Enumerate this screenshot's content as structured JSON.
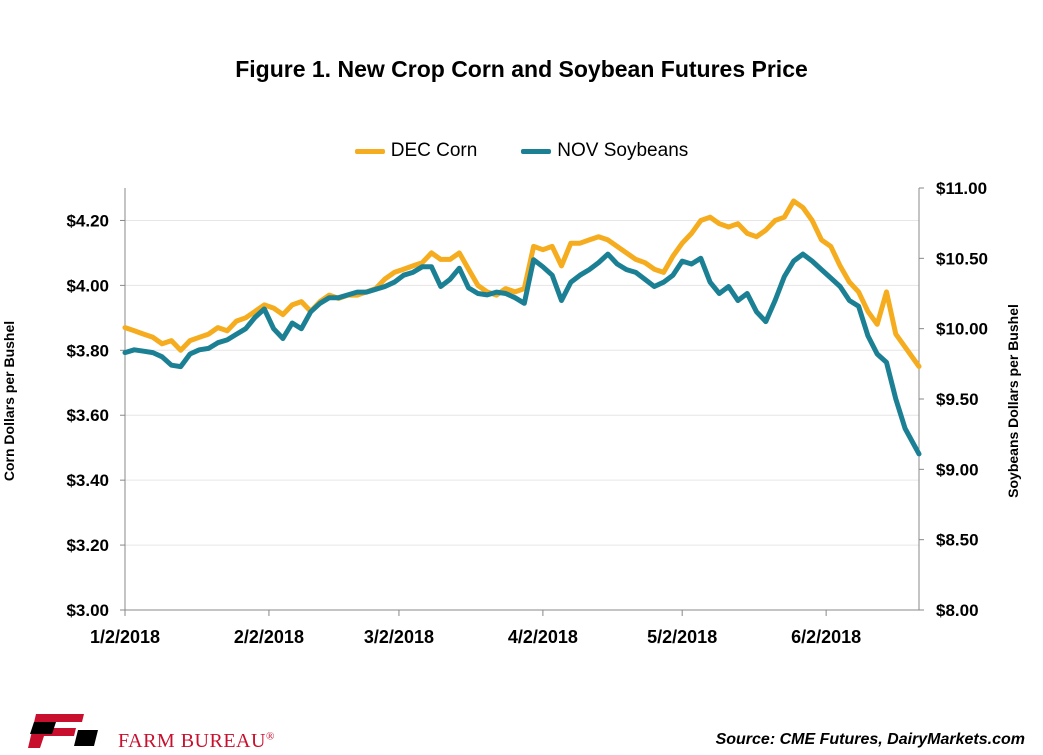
{
  "title": "Figure 1. New Crop Corn and Soybean Futures Price",
  "legend": {
    "corn": "DEC Corn",
    "soy": "NOV Soybeans"
  },
  "footer": {
    "source": "Source: CME Futures, DairyMarkets.com",
    "brand": "FARM BUREAU",
    "brand_mark": "®"
  },
  "colors": {
    "corn": "#f5ac1e",
    "soy": "#1c8094"
  },
  "chart_data": {
    "type": "line",
    "title": "Figure 1. New Crop Corn and Soybean Futures Price",
    "xlabel": "",
    "ylabel": "Corn Dollars per Bushel",
    "y2label": "Soybeans Dollars per Bushel",
    "xlim": [
      "2018-01-02",
      "2018-06-22"
    ],
    "ylim": [
      3.0,
      4.3
    ],
    "y2lim": [
      8.0,
      11.0
    ],
    "yticks": [
      "$3.00",
      "$3.20",
      "$3.40",
      "$3.60",
      "$3.80",
      "$4.00",
      "$4.20"
    ],
    "y2ticks": [
      "$8.00",
      "$8.50",
      "$9.00",
      "$9.50",
      "$10.00",
      "$10.50",
      "$11.00"
    ],
    "xticks": [
      "1/2/2018",
      "2/2/2018",
      "3/2/2018",
      "4/2/2018",
      "5/2/2018",
      "6/2/2018"
    ],
    "grid": "horizontal",
    "legend_position": "top",
    "series": [
      {
        "name": "DEC Corn",
        "axis": "left",
        "points": [
          [
            "2018-01-02",
            3.87
          ],
          [
            "2018-01-04",
            3.86
          ],
          [
            "2018-01-06",
            3.85
          ],
          [
            "2018-01-08",
            3.84
          ],
          [
            "2018-01-10",
            3.82
          ],
          [
            "2018-01-12",
            3.83
          ],
          [
            "2018-01-14",
            3.8
          ],
          [
            "2018-01-16",
            3.83
          ],
          [
            "2018-01-18",
            3.84
          ],
          [
            "2018-01-20",
            3.85
          ],
          [
            "2018-01-22",
            3.87
          ],
          [
            "2018-01-24",
            3.86
          ],
          [
            "2018-01-26",
            3.89
          ],
          [
            "2018-01-28",
            3.9
          ],
          [
            "2018-01-30",
            3.92
          ],
          [
            "2018-02-01",
            3.94
          ],
          [
            "2018-02-03",
            3.93
          ],
          [
            "2018-02-05",
            3.91
          ],
          [
            "2018-02-07",
            3.94
          ],
          [
            "2018-02-09",
            3.95
          ],
          [
            "2018-02-11",
            3.92
          ],
          [
            "2018-02-13",
            3.95
          ],
          [
            "2018-02-15",
            3.97
          ],
          [
            "2018-02-17",
            3.96
          ],
          [
            "2018-02-19",
            3.97
          ],
          [
            "2018-02-21",
            3.97
          ],
          [
            "2018-02-23",
            3.98
          ],
          [
            "2018-02-25",
            3.99
          ],
          [
            "2018-02-27",
            4.02
          ],
          [
            "2018-03-01",
            4.04
          ],
          [
            "2018-03-03",
            4.05
          ],
          [
            "2018-03-05",
            4.06
          ],
          [
            "2018-03-07",
            4.07
          ],
          [
            "2018-03-09",
            4.1
          ],
          [
            "2018-03-11",
            4.08
          ],
          [
            "2018-03-13",
            4.08
          ],
          [
            "2018-03-15",
            4.1
          ],
          [
            "2018-03-17",
            4.05
          ],
          [
            "2018-03-19",
            4.0
          ],
          [
            "2018-03-21",
            3.98
          ],
          [
            "2018-03-23",
            3.97
          ],
          [
            "2018-03-25",
            3.99
          ],
          [
            "2018-03-27",
            3.98
          ],
          [
            "2018-03-29",
            3.99
          ],
          [
            "2018-03-31",
            4.12
          ],
          [
            "2018-04-02",
            4.11
          ],
          [
            "2018-04-04",
            4.12
          ],
          [
            "2018-04-06",
            4.06
          ],
          [
            "2018-04-08",
            4.13
          ],
          [
            "2018-04-10",
            4.13
          ],
          [
            "2018-04-12",
            4.14
          ],
          [
            "2018-04-14",
            4.15
          ],
          [
            "2018-04-16",
            4.14
          ],
          [
            "2018-04-18",
            4.12
          ],
          [
            "2018-04-20",
            4.1
          ],
          [
            "2018-04-22",
            4.08
          ],
          [
            "2018-04-24",
            4.07
          ],
          [
            "2018-04-26",
            4.05
          ],
          [
            "2018-04-28",
            4.04
          ],
          [
            "2018-04-30",
            4.09
          ],
          [
            "2018-05-02",
            4.13
          ],
          [
            "2018-05-04",
            4.16
          ],
          [
            "2018-05-06",
            4.2
          ],
          [
            "2018-05-08",
            4.21
          ],
          [
            "2018-05-10",
            4.19
          ],
          [
            "2018-05-12",
            4.18
          ],
          [
            "2018-05-14",
            4.19
          ],
          [
            "2018-05-16",
            4.16
          ],
          [
            "2018-05-18",
            4.15
          ],
          [
            "2018-05-20",
            4.17
          ],
          [
            "2018-05-22",
            4.2
          ],
          [
            "2018-05-24",
            4.21
          ],
          [
            "2018-05-26",
            4.26
          ],
          [
            "2018-05-28",
            4.24
          ],
          [
            "2018-05-30",
            4.2
          ],
          [
            "2018-06-01",
            4.14
          ],
          [
            "2018-06-03",
            4.12
          ],
          [
            "2018-06-05",
            4.06
          ],
          [
            "2018-06-07",
            4.01
          ],
          [
            "2018-06-09",
            3.98
          ],
          [
            "2018-06-11",
            3.92
          ],
          [
            "2018-06-13",
            3.88
          ],
          [
            "2018-06-15",
            3.98
          ],
          [
            "2018-06-17",
            3.85
          ],
          [
            "2018-06-19",
            3.81
          ],
          [
            "2018-06-22",
            3.75
          ]
        ]
      },
      {
        "name": "NOV Soybeans",
        "axis": "right",
        "points": [
          [
            "2018-01-02",
            9.83
          ],
          [
            "2018-01-04",
            9.85
          ],
          [
            "2018-01-06",
            9.84
          ],
          [
            "2018-01-08",
            9.83
          ],
          [
            "2018-01-10",
            9.8
          ],
          [
            "2018-01-12",
            9.74
          ],
          [
            "2018-01-14",
            9.73
          ],
          [
            "2018-01-16",
            9.82
          ],
          [
            "2018-01-18",
            9.85
          ],
          [
            "2018-01-20",
            9.86
          ],
          [
            "2018-01-22",
            9.9
          ],
          [
            "2018-01-24",
            9.92
          ],
          [
            "2018-01-26",
            9.96
          ],
          [
            "2018-01-28",
            10.0
          ],
          [
            "2018-01-30",
            10.08
          ],
          [
            "2018-02-01",
            10.14
          ],
          [
            "2018-02-03",
            10.0
          ],
          [
            "2018-02-05",
            9.93
          ],
          [
            "2018-02-07",
            10.04
          ],
          [
            "2018-02-09",
            10.0
          ],
          [
            "2018-02-11",
            10.12
          ],
          [
            "2018-02-13",
            10.18
          ],
          [
            "2018-02-15",
            10.22
          ],
          [
            "2018-02-17",
            10.22
          ],
          [
            "2018-02-19",
            10.24
          ],
          [
            "2018-02-21",
            10.26
          ],
          [
            "2018-02-23",
            10.26
          ],
          [
            "2018-02-25",
            10.28
          ],
          [
            "2018-02-27",
            10.3
          ],
          [
            "2018-03-01",
            10.33
          ],
          [
            "2018-03-03",
            10.38
          ],
          [
            "2018-03-05",
            10.4
          ],
          [
            "2018-03-07",
            10.44
          ],
          [
            "2018-03-09",
            10.44
          ],
          [
            "2018-03-11",
            10.3
          ],
          [
            "2018-03-13",
            10.35
          ],
          [
            "2018-03-15",
            10.43
          ],
          [
            "2018-03-17",
            10.29
          ],
          [
            "2018-03-19",
            10.25
          ],
          [
            "2018-03-21",
            10.24
          ],
          [
            "2018-03-23",
            10.26
          ],
          [
            "2018-03-25",
            10.25
          ],
          [
            "2018-03-27",
            10.22
          ],
          [
            "2018-03-29",
            10.18
          ],
          [
            "2018-03-31",
            10.49
          ],
          [
            "2018-04-02",
            10.44
          ],
          [
            "2018-04-04",
            10.38
          ],
          [
            "2018-04-06",
            10.2
          ],
          [
            "2018-04-08",
            10.33
          ],
          [
            "2018-04-10",
            10.38
          ],
          [
            "2018-04-12",
            10.42
          ],
          [
            "2018-04-14",
            10.47
          ],
          [
            "2018-04-16",
            10.53
          ],
          [
            "2018-04-18",
            10.46
          ],
          [
            "2018-04-20",
            10.42
          ],
          [
            "2018-04-22",
            10.4
          ],
          [
            "2018-04-24",
            10.35
          ],
          [
            "2018-04-26",
            10.3
          ],
          [
            "2018-04-28",
            10.33
          ],
          [
            "2018-04-30",
            10.38
          ],
          [
            "2018-05-02",
            10.48
          ],
          [
            "2018-05-04",
            10.46
          ],
          [
            "2018-05-06",
            10.5
          ],
          [
            "2018-05-08",
            10.33
          ],
          [
            "2018-05-10",
            10.25
          ],
          [
            "2018-05-12",
            10.3
          ],
          [
            "2018-05-14",
            10.2
          ],
          [
            "2018-05-16",
            10.25
          ],
          [
            "2018-05-18",
            10.12
          ],
          [
            "2018-05-20",
            10.05
          ],
          [
            "2018-05-22",
            10.2
          ],
          [
            "2018-05-24",
            10.37
          ],
          [
            "2018-05-26",
            10.48
          ],
          [
            "2018-05-28",
            10.53
          ],
          [
            "2018-05-30",
            10.48
          ],
          [
            "2018-06-01",
            10.42
          ],
          [
            "2018-06-03",
            10.36
          ],
          [
            "2018-06-05",
            10.3
          ],
          [
            "2018-06-07",
            10.2
          ],
          [
            "2018-06-09",
            10.16
          ],
          [
            "2018-06-11",
            9.95
          ],
          [
            "2018-06-13",
            9.82
          ],
          [
            "2018-06-15",
            9.76
          ],
          [
            "2018-06-17",
            9.5
          ],
          [
            "2018-06-19",
            9.29
          ],
          [
            "2018-06-22",
            9.11
          ]
        ]
      }
    ]
  }
}
